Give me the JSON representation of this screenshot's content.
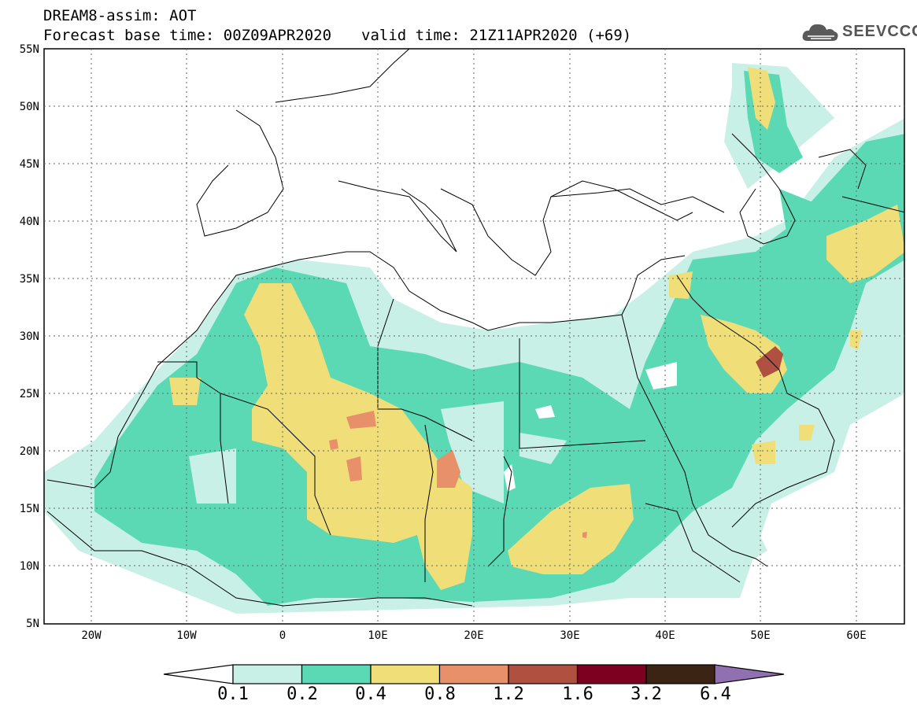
{
  "header": {
    "title": "DREAM8-assim: AOT",
    "base_time": "Forecast base time: 00Z09APR2020",
    "valid_time": "valid time: 21Z11APR2020 (+69)"
  },
  "logo": {
    "text": "SEEVCCC",
    "icon": "cloud-icon"
  },
  "axes": {
    "y_ticks": [
      "55N",
      "50N",
      "45N",
      "40N",
      "35N",
      "30N",
      "25N",
      "20N",
      "15N",
      "10N",
      "5N"
    ],
    "x_ticks": [
      "20W",
      "10W",
      "0",
      "10E",
      "20E",
      "30E",
      "40E",
      "50E",
      "60E"
    ]
  },
  "colorbar": {
    "labels": [
      "0.1",
      "0.2",
      "0.4",
      "0.8",
      "1.2",
      "1.6",
      "3.2",
      "6.4"
    ],
    "colors": [
      "#c8f0e6",
      "#5ad9b4",
      "#f0df78",
      "#e8906a",
      "#b05040",
      "#7d0020",
      "#3c2414",
      "#9070b0"
    ]
  },
  "chart_data": {
    "type": "heatmap",
    "title": "DREAM8-assim: AOT",
    "x_range": [
      -25,
      65
    ],
    "y_range": [
      5,
      55
    ],
    "levels": [
      0.1,
      0.2,
      0.4,
      0.8,
      1.2,
      1.6,
      3.2,
      6.4
    ]
  }
}
